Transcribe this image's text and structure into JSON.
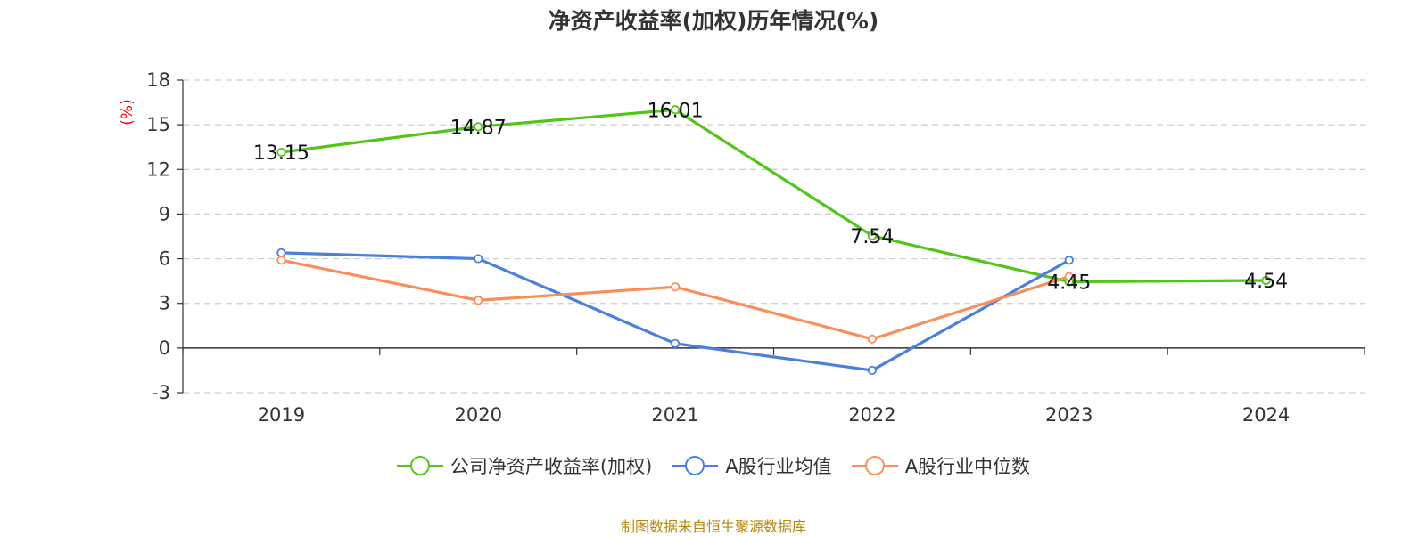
{
  "title": "净资产收益率(加权)历年情况(%)",
  "source_note": "制图数据来自恒生聚源数据库",
  "chart_data": {
    "type": "line",
    "title": "净资产收益率(加权)历年情况(%)",
    "ylabel": "(%)",
    "xlabel": "",
    "categories": [
      "2019",
      "2020",
      "2021",
      "2022",
      "2023",
      "2024"
    ],
    "ylim": [
      -3,
      18
    ],
    "yticks": [
      -3,
      0,
      3,
      6,
      9,
      12,
      15,
      18
    ],
    "grid": true,
    "legend_position": "bottom",
    "series": [
      {
        "name": "公司净资产收益率(加权)",
        "color": "#52c41a",
        "show_labels": true,
        "values": [
          13.15,
          14.87,
          16.01,
          7.54,
          4.45,
          4.54
        ]
      },
      {
        "name": "A股行业均值",
        "color": "#4a7fdd",
        "show_labels": false,
        "values": [
          6.4,
          6.0,
          0.3,
          -1.5,
          5.9,
          null
        ]
      },
      {
        "name": "A股行业中位数",
        "color": "#f98e5a",
        "show_labels": false,
        "values": [
          5.9,
          3.2,
          4.1,
          0.6,
          4.8,
          null
        ]
      }
    ]
  }
}
